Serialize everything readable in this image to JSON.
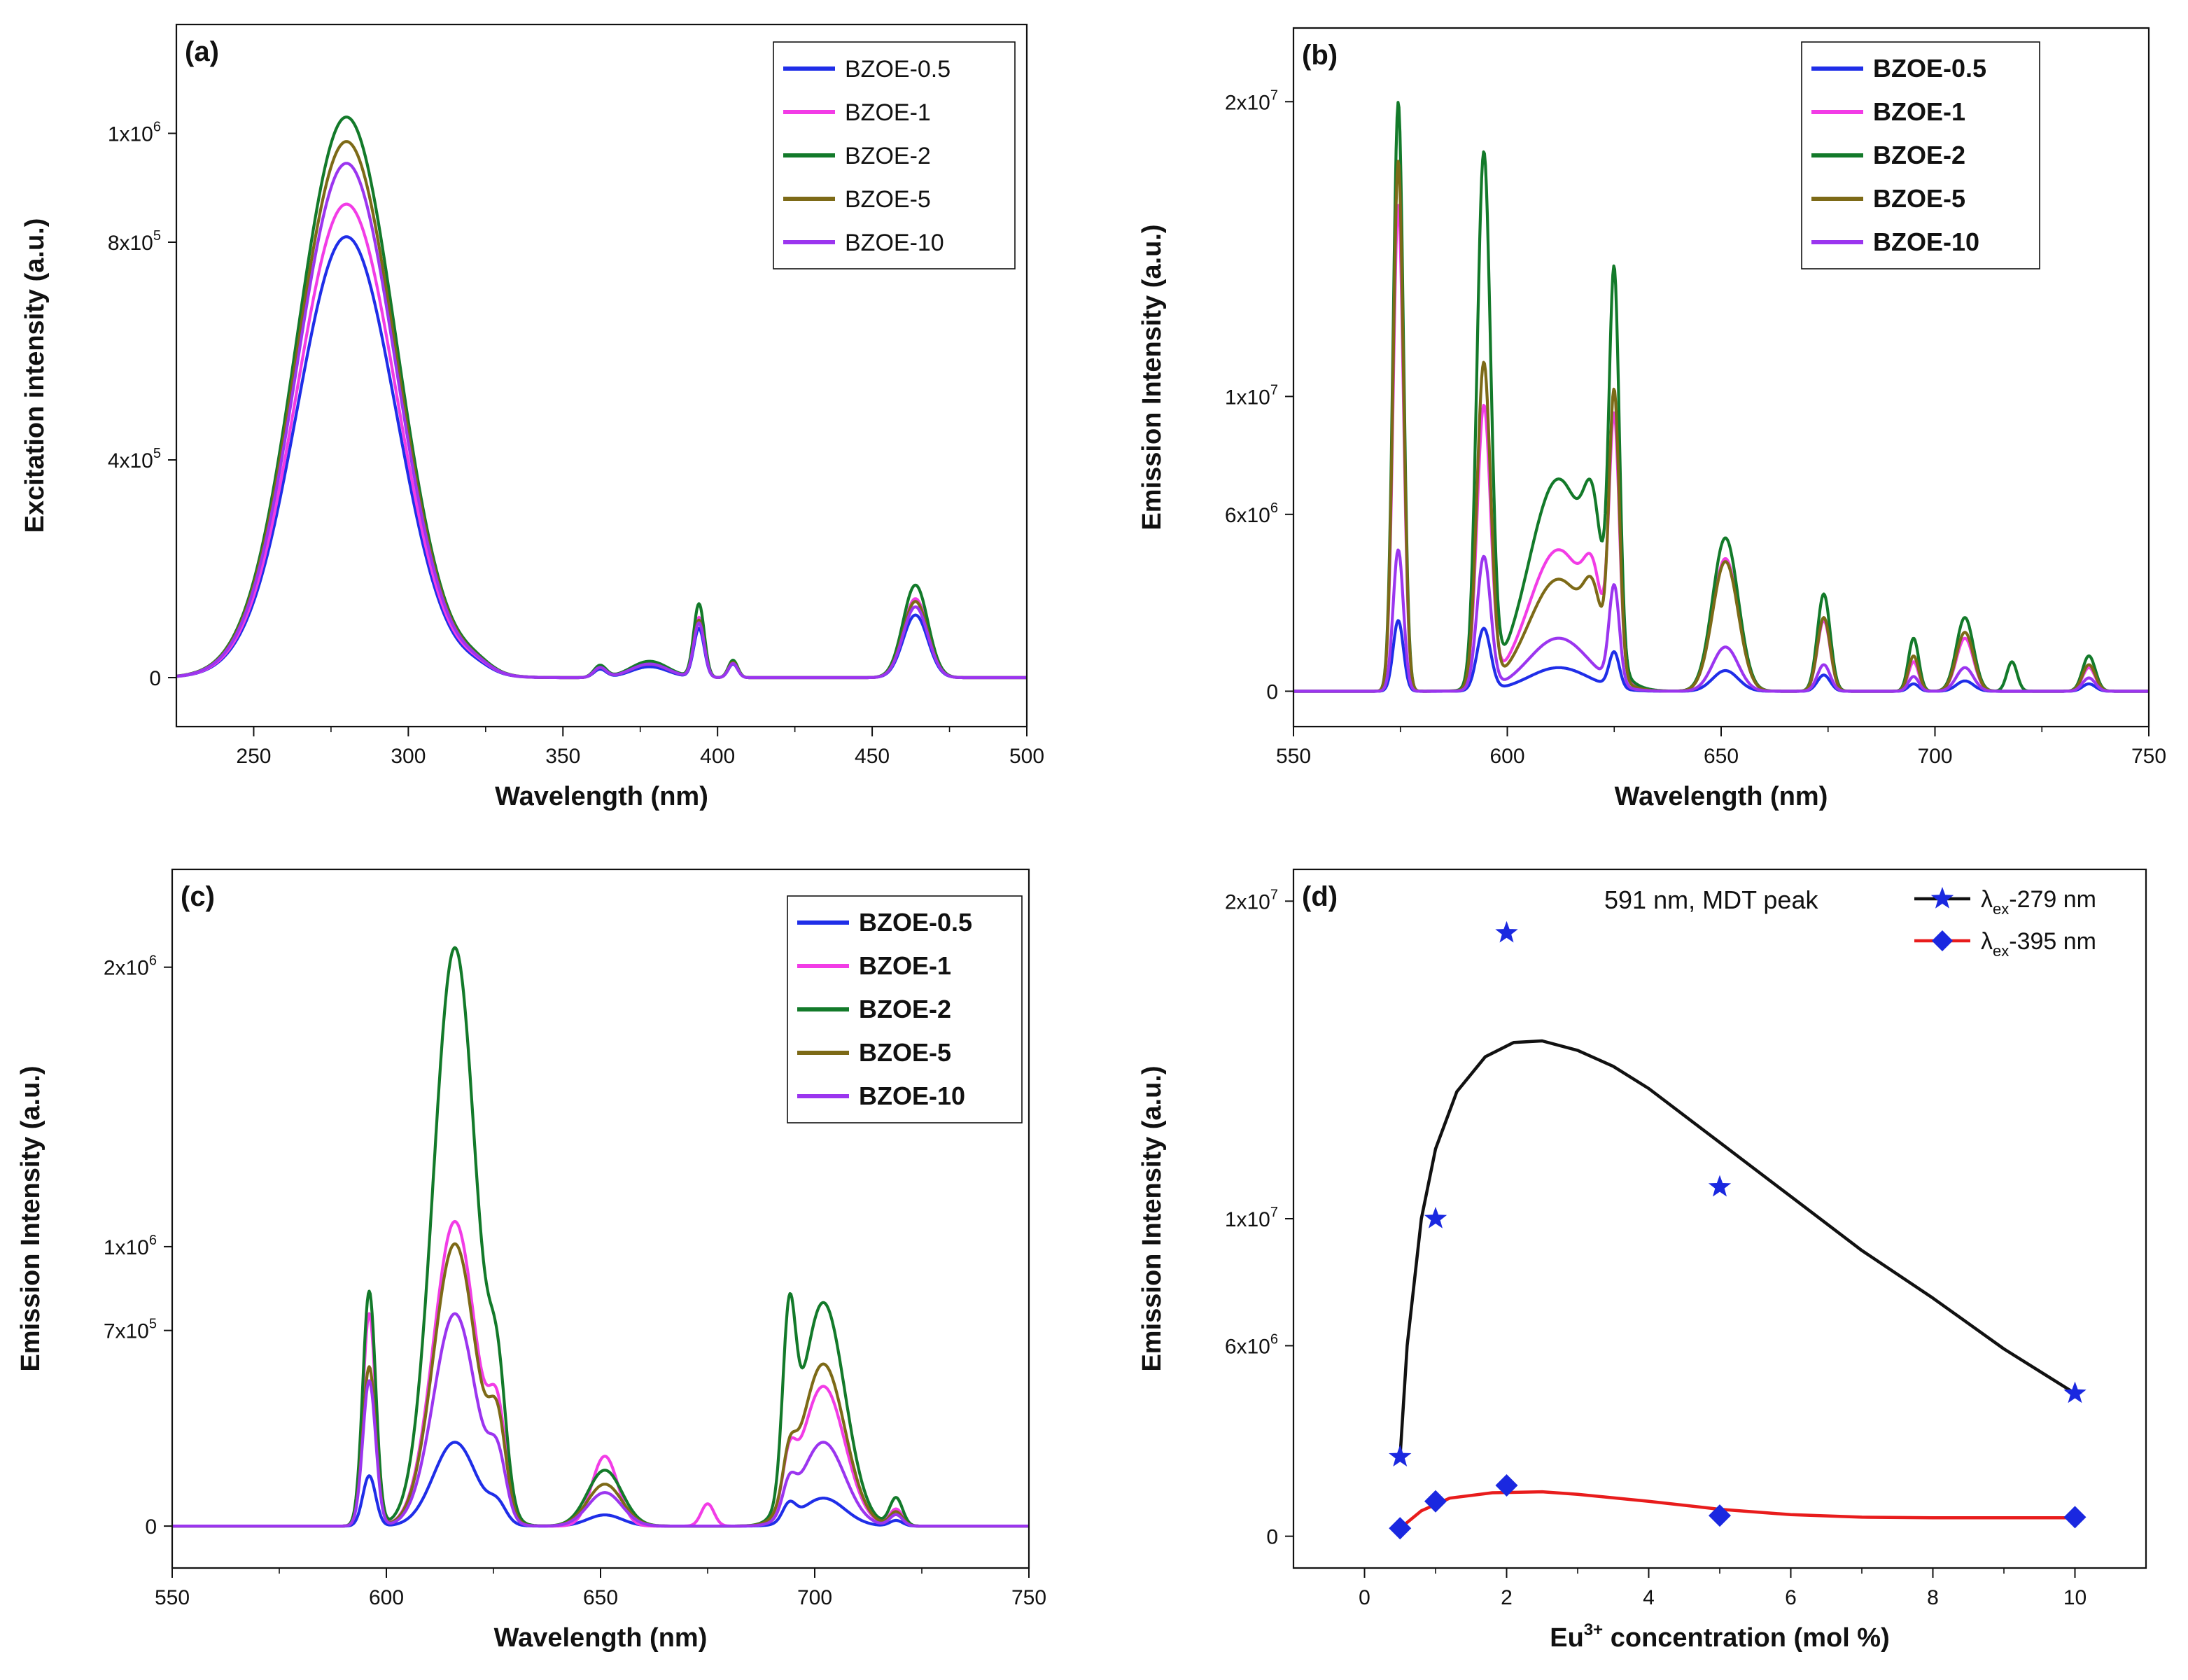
{
  "colors": {
    "BZOE-0.5": "#1f2ee8",
    "BZOE-1": "#f23ce6",
    "BZOE-2": "#137a2a",
    "BZOE-5": "#7d6a17",
    "BZOE-10": "#9b35ef",
    "star_series": "#111111",
    "diamond_series": "#e81c1c",
    "star_marker": "#1a28e0",
    "diamond_marker": "#1a28e0"
  },
  "chart_data": [
    {
      "id": "a",
      "type": "line",
      "panel_label": "(a)",
      "xlabel": "Wavelength (nm)",
      "ylabel": "Excitation intensity (a.u.)",
      "xlim": [
        225,
        500
      ],
      "ylim": [
        -90000,
        1200000
      ],
      "xticks": [
        250,
        300,
        350,
        400,
        450,
        500
      ],
      "xtick_labels": [
        "250",
        "300",
        "350",
        "400",
        "450",
        "500"
      ],
      "yticks": [
        0,
        400000,
        800000,
        1000000
      ],
      "ytick_labels": [
        [
          "0",
          ""
        ],
        [
          "4x10",
          "5"
        ],
        [
          "8x10",
          "5"
        ],
        [
          "1x10",
          "6"
        ]
      ],
      "legend": [
        "BZOE-0.5",
        "BZOE-1",
        "BZOE-2",
        "BZOE-5",
        "BZOE-10"
      ],
      "legend_position": "top-right",
      "series": [
        {
          "name": "BZOE-0.5",
          "peaks": [
            [
              280,
              810000,
              16
            ],
            [
              322,
              10000,
              5
            ],
            [
              362,
              15000,
              2
            ],
            [
              378,
              20000,
              6
            ],
            [
              394,
              90000,
              1.7
            ],
            [
              405,
              25000,
              1.5
            ],
            [
              464,
              115000,
              4
            ]
          ]
        },
        {
          "name": "BZOE-1",
          "peaks": [
            [
              280,
              870000,
              16
            ],
            [
              322,
              12000,
              5
            ],
            [
              362,
              18000,
              2
            ],
            [
              378,
              25000,
              6
            ],
            [
              394,
              110000,
              1.7
            ],
            [
              405,
              28000,
              1.5
            ],
            [
              464,
              145000,
              4
            ]
          ]
        },
        {
          "name": "BZOE-2",
          "peaks": [
            [
              280,
              1030000,
              16
            ],
            [
              322,
              14000,
              5
            ],
            [
              362,
              22000,
              2
            ],
            [
              378,
              30000,
              6
            ],
            [
              394,
              135000,
              1.7
            ],
            [
              405,
              32000,
              1.5
            ],
            [
              464,
              170000,
              4
            ]
          ]
        },
        {
          "name": "BZOE-5",
          "peaks": [
            [
              280,
              985000,
              16
            ],
            [
              322,
              12000,
              5
            ],
            [
              362,
              18000,
              2
            ],
            [
              378,
              25000,
              6
            ],
            [
              394,
              105000,
              1.7
            ],
            [
              405,
              28000,
              1.5
            ],
            [
              464,
              140000,
              4
            ]
          ]
        },
        {
          "name": "BZOE-10",
          "peaks": [
            [
              280,
              945000,
              16
            ],
            [
              322,
              12000,
              5
            ],
            [
              362,
              18000,
              2
            ],
            [
              378,
              25000,
              6
            ],
            [
              394,
              100000,
              1.7
            ],
            [
              405,
              26000,
              1.5
            ],
            [
              464,
              130000,
              4
            ]
          ]
        }
      ]
    },
    {
      "id": "b",
      "type": "line",
      "panel_label": "(b)",
      "xlabel": "Wavelength (nm)",
      "ylabel": "Emission Intensity (a.u.)",
      "xlim": [
        550,
        750
      ],
      "ylim": [
        -1200000,
        22500000
      ],
      "xticks": [
        550,
        600,
        650,
        700,
        750
      ],
      "xtick_labels": [
        "550",
        "600",
        "650",
        "700",
        "750"
      ],
      "yticks": [
        0,
        6000000,
        10000000,
        20000000
      ],
      "ytick_labels": [
        [
          "0",
          ""
        ],
        [
          "6x10",
          "6"
        ],
        [
          "1x10",
          "7"
        ],
        [
          "2x10",
          "7"
        ]
      ],
      "legend": [
        "BZOE-0.5",
        "BZOE-1",
        "BZOE-2",
        "BZOE-5",
        "BZOE-10"
      ],
      "legend_position": "top-right",
      "series": [
        {
          "name": "BZOE-0.5",
          "peaks": [
            [
              574.5,
              2400000,
              1.2
            ],
            [
              594.5,
              2100000,
              1.6
            ],
            [
              612,
              800000,
              7
            ],
            [
              625,
              1200000,
              1.2
            ],
            [
              651,
              700000,
              3
            ],
            [
              674,
              550000,
              1.5
            ],
            [
              695,
              250000,
              1.2
            ],
            [
              707,
              350000,
              2
            ],
            [
              736,
              250000,
              1.5
            ]
          ]
        },
        {
          "name": "BZOE-1",
          "peaks": [
            [
              574.5,
              16500000,
              1.2
            ],
            [
              594.5,
              9500000,
              1.6
            ],
            [
              612,
              4800000,
              7
            ],
            [
              620,
              2000000,
              2
            ],
            [
              625,
              8500000,
              1.2
            ],
            [
              651,
              4500000,
              3
            ],
            [
              674,
              2400000,
              1.5
            ],
            [
              695,
              1000000,
              1.2
            ],
            [
              707,
              1800000,
              2
            ],
            [
              736,
              800000,
              1.5
            ]
          ]
        },
        {
          "name": "BZOE-2",
          "peaks": [
            [
              574.5,
              20000000,
              1.2
            ],
            [
              594.5,
              18000000,
              1.6
            ],
            [
              612,
              7200000,
              7
            ],
            [
              620,
              3200000,
              2
            ],
            [
              625,
              13000000,
              1.2
            ],
            [
              651,
              5200000,
              3
            ],
            [
              674,
              3300000,
              1.5
            ],
            [
              695,
              1800000,
              1.2
            ],
            [
              707,
              2500000,
              2
            ],
            [
              718,
              1000000,
              1.2
            ],
            [
              736,
              1200000,
              1.5
            ]
          ]
        },
        {
          "name": "BZOE-5",
          "peaks": [
            [
              574.5,
              18000000,
              1.2
            ],
            [
              594.5,
              11000000,
              1.6
            ],
            [
              612,
              3800000,
              7
            ],
            [
              620,
              1800000,
              2
            ],
            [
              625,
              9500000,
              1.2
            ],
            [
              651,
              4400000,
              3
            ],
            [
              674,
              2500000,
              1.5
            ],
            [
              695,
              1200000,
              1.2
            ],
            [
              707,
              2000000,
              2
            ],
            [
              736,
              900000,
              1.5
            ]
          ]
        },
        {
          "name": "BZOE-10",
          "peaks": [
            [
              574.5,
              4800000,
              1.2
            ],
            [
              594.5,
              4500000,
              1.6
            ],
            [
              612,
              1800000,
              7
            ],
            [
              625,
              3300000,
              1.2
            ],
            [
              651,
              1500000,
              3
            ],
            [
              674,
              900000,
              1.5
            ],
            [
              695,
              500000,
              1.2
            ],
            [
              707,
              800000,
              2
            ],
            [
              736,
              450000,
              1.5
            ]
          ]
        }
      ]
    },
    {
      "id": "c",
      "type": "line",
      "panel_label": "(c)",
      "xlabel": "Wavelength (nm)",
      "ylabel": "Emission Intensity (a.u.)",
      "xlim": [
        550,
        750
      ],
      "ylim": [
        -150000,
        2350000
      ],
      "xticks": [
        550,
        600,
        650,
        700,
        750
      ],
      "xtick_labels": [
        "550",
        "600",
        "650",
        "700",
        "750"
      ],
      "yticks": [
        0,
        700000,
        1000000,
        2000000
      ],
      "ytick_labels": [
        [
          "0",
          ""
        ],
        [
          "7x10",
          "5"
        ],
        [
          "1x10",
          "6"
        ],
        [
          "2x10",
          "6"
        ]
      ],
      "legend": [
        "BZOE-0.5",
        "BZOE-1",
        "BZOE-2",
        "BZOE-5",
        "BZOE-10"
      ],
      "legend_position": "top-right",
      "series": [
        {
          "name": "BZOE-0.5",
          "peaks": [
            [
              596,
              180000,
              1.5
            ],
            [
              616,
              300000,
              5
            ],
            [
              626,
              60000,
              2
            ],
            [
              651,
              40000,
              4
            ],
            [
              694,
              60000,
              1.5
            ],
            [
              702,
              100000,
              5
            ],
            [
              719,
              20000,
              1.5
            ]
          ]
        },
        {
          "name": "BZOE-1",
          "peaks": [
            [
              596,
              760000,
              1.5
            ],
            [
              616,
              1090000,
              5
            ],
            [
              626,
              330000,
              2
            ],
            [
              651,
              250000,
              3
            ],
            [
              675,
              80000,
              1.5
            ],
            [
              694,
              160000,
              1.5
            ],
            [
              702,
              500000,
              5
            ],
            [
              719,
              60000,
              1.5
            ]
          ]
        },
        {
          "name": "BZOE-2",
          "peaks": [
            [
              596,
              840000,
              1.5
            ],
            [
              616,
              2070000,
              5
            ],
            [
              626,
              400000,
              2
            ],
            [
              651,
              200000,
              4
            ],
            [
              694,
              600000,
              1.5
            ],
            [
              702,
              800000,
              5
            ],
            [
              719,
              100000,
              1.5
            ]
          ]
        },
        {
          "name": "BZOE-5",
          "peaks": [
            [
              596,
              570000,
              1.5
            ],
            [
              616,
              1010000,
              5
            ],
            [
              626,
              300000,
              2
            ],
            [
              651,
              150000,
              4
            ],
            [
              694,
              150000,
              1.5
            ],
            [
              702,
              580000,
              5
            ],
            [
              719,
              50000,
              1.5
            ]
          ]
        },
        {
          "name": "BZOE-10",
          "peaks": [
            [
              596,
              520000,
              1.5
            ],
            [
              616,
              760000,
              5
            ],
            [
              626,
              200000,
              2
            ],
            [
              651,
              120000,
              4
            ],
            [
              694,
              100000,
              1.5
            ],
            [
              702,
              300000,
              5
            ],
            [
              719,
              40000,
              1.5
            ]
          ]
        }
      ]
    },
    {
      "id": "d",
      "type": "scatter",
      "panel_label": "(d)",
      "annotation": "591 nm, MDT peak",
      "xlabel": "concentration (mol %)",
      "xlabel_prefix": "Eu",
      "xlabel_sup": "3+",
      "ylabel": "Emission Intensity (a.u.)",
      "xlim": [
        -1,
        11
      ],
      "ylim": [
        -1000000,
        21000000
      ],
      "xticks": [
        0,
        2,
        4,
        6,
        8,
        10
      ],
      "xtick_labels": [
        "0",
        "2",
        "4",
        "6",
        "8",
        "10"
      ],
      "yticks": [
        0,
        6000000,
        10000000,
        20000000
      ],
      "ytick_labels": [
        [
          "0",
          ""
        ],
        [
          "6x10",
          "6"
        ],
        [
          "1x10",
          "7"
        ],
        [
          "2x10",
          "7"
        ]
      ],
      "legend_position": "top-right",
      "series": [
        {
          "name": "λex-279 nm",
          "legend_symbol": "λ",
          "legend_sub": "ex",
          "legend_rest": "-279 nm",
          "marker": "star",
          "x": [
            0.5,
            1,
            2,
            5,
            10
          ],
          "y": [
            2500000,
            10000000,
            19000000,
            11000000,
            4500000
          ],
          "fit": [
            [
              0.5,
              2500000
            ],
            [
              0.6,
              6000000
            ],
            [
              0.8,
              10000000
            ],
            [
              1.0,
              12200000
            ],
            [
              1.3,
              14000000
            ],
            [
              1.7,
              15100000
            ],
            [
              2.1,
              15550000
            ],
            [
              2.5,
              15600000
            ],
            [
              3.0,
              15300000
            ],
            [
              3.5,
              14800000
            ],
            [
              4.0,
              14100000
            ],
            [
              5.0,
              12400000
            ],
            [
              6.0,
              10700000
            ],
            [
              7.0,
              9000000
            ],
            [
              8.0,
              7500000
            ],
            [
              9.0,
              5900000
            ],
            [
              10.0,
              4500000
            ]
          ]
        },
        {
          "name": "λex-395 nm",
          "legend_symbol": "λ",
          "legend_sub": "ex",
          "legend_rest": "-395 nm",
          "marker": "diamond",
          "x": [
            0.5,
            1,
            2,
            5,
            10
          ],
          "y": [
            250000,
            1100000,
            1600000,
            650000,
            600000
          ],
          "fit": [
            [
              0.5,
              250000
            ],
            [
              0.8,
              800000
            ],
            [
              1.2,
              1200000
            ],
            [
              1.8,
              1370000
            ],
            [
              2.5,
              1400000
            ],
            [
              3.0,
              1320000
            ],
            [
              4.0,
              1100000
            ],
            [
              5.0,
              850000
            ],
            [
              6.0,
              680000
            ],
            [
              7.0,
              600000
            ],
            [
              8.0,
              580000
            ],
            [
              10.0,
              580000
            ]
          ]
        }
      ]
    }
  ]
}
